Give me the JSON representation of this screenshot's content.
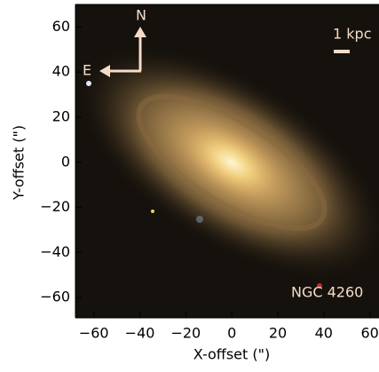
{
  "chart_data": {
    "type": "image",
    "xlabel": "X-offset (\")",
    "ylabel": "Y-offset (\")",
    "xlim": [
      -68,
      64
    ],
    "ylim": [
      -69,
      70
    ],
    "xticks": [
      {
        "value": -60,
        "label": "−60"
      },
      {
        "value": -40,
        "label": "−40"
      },
      {
        "value": -20,
        "label": "−20"
      },
      0,
      20,
      40,
      60
    ],
    "yticks": [
      {
        "value": -60,
        "label": "−60"
      },
      {
        "value": -40,
        "label": "−40"
      },
      {
        "value": -20,
        "label": "−20"
      },
      0,
      20,
      40,
      60
    ],
    "annotations": {
      "north": "N",
      "east": "E",
      "scale": "1 kpc",
      "object": "NGC 4260"
    }
  }
}
